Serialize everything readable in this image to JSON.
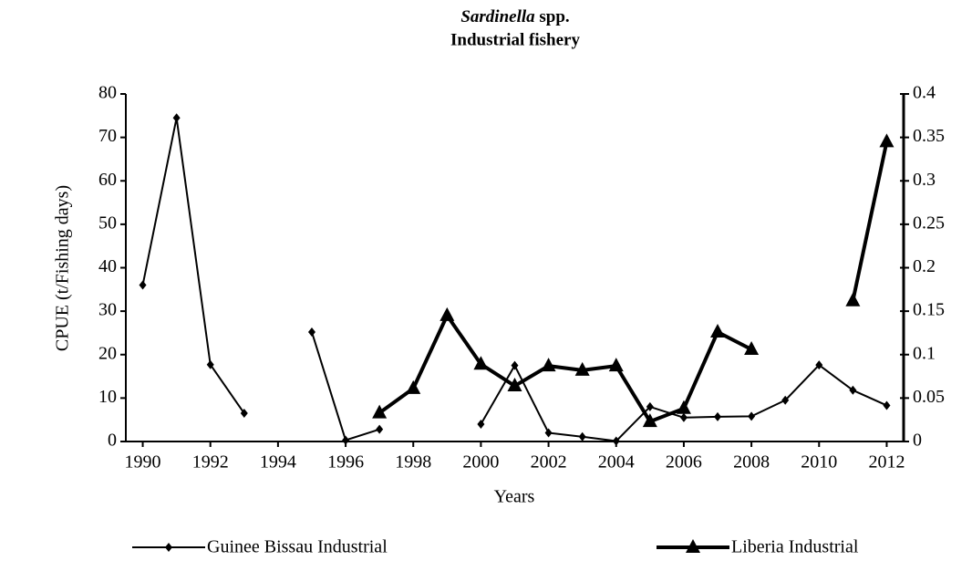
{
  "chart_data": {
    "type": "line",
    "title": {
      "species": "Sardinella",
      "suffix": "spp.",
      "subtitle": "Industrial fishery"
    },
    "x_label": "Years",
    "y_label": "CPUE (t/Fishing days)",
    "x": [
      1990,
      1991,
      1992,
      1993,
      1994,
      1995,
      1996,
      1997,
      1998,
      1999,
      2000,
      2001,
      2002,
      2003,
      2004,
      2005,
      2006,
      2007,
      2008,
      2009,
      2010,
      2011,
      2012
    ],
    "xlim": [
      1989.5,
      2012.5
    ],
    "xticks": [
      1990,
      1992,
      1994,
      1996,
      1998,
      2000,
      2002,
      2004,
      2006,
      2008,
      2010,
      2012
    ],
    "ylim": [
      0,
      80
    ],
    "yticks": [
      0,
      10,
      20,
      30,
      40,
      50,
      60,
      70,
      80
    ],
    "y2lim": [
      0,
      0.4
    ],
    "y2ticks": [
      0,
      0.05,
      0.1,
      0.15,
      0.2,
      0.25,
      0.3,
      0.35,
      0.4
    ],
    "series": [
      {
        "name": "Guinee Bissau Industrial",
        "color": "#000000",
        "marker": "diamond",
        "values": [
          36,
          74.5,
          17.7,
          6.5,
          null,
          25.2,
          0.3,
          2.8,
          null,
          null,
          4,
          17.5,
          2,
          1.1,
          0.1,
          8,
          5.5,
          5.7,
          5.8,
          9.5,
          17.6,
          11.8,
          8.3
        ]
      },
      {
        "name": "Liberia Industrial",
        "color": "#000000",
        "marker": "triangle",
        "axis": "y2",
        "values": [
          null,
          null,
          null,
          null,
          null,
          null,
          null,
          0.033,
          0.061,
          0.145,
          0.089,
          0.064,
          0.087,
          0.082,
          0.087,
          0.023,
          0.038,
          0.126,
          0.106,
          null,
          null,
          0.162,
          0.345
        ]
      }
    ]
  }
}
